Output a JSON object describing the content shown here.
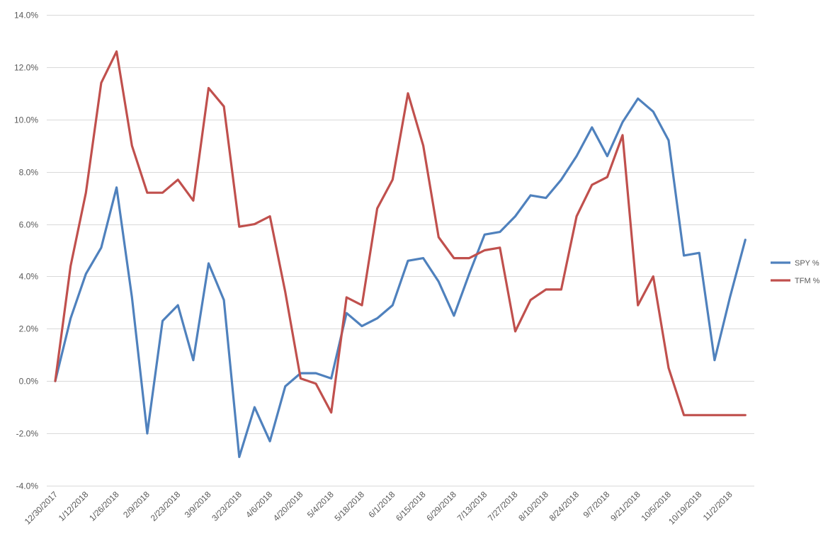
{
  "chart_data": {
    "type": "line",
    "title": "",
    "xlabel": "",
    "ylabel": "",
    "ylim": [
      -4,
      14
    ],
    "y_ticks": [
      -4,
      -2,
      0,
      2,
      4,
      6,
      8,
      10,
      12,
      14
    ],
    "y_tick_labels": [
      "-4.0%",
      "-2.0%",
      "0.0%",
      "2.0%",
      "4.0%",
      "6.0%",
      "8.0%",
      "10.0%",
      "12.0%",
      "14.0%"
    ],
    "grid": true,
    "legend_position": "right",
    "x_tick_labels": [
      "12/30/2017",
      "1/12/2018",
      "1/26/2018",
      "2/9/2018",
      "2/23/2018",
      "3/9/2018",
      "3/23/2018",
      "4/6/2018",
      "4/20/2018",
      "5/4/2018",
      "5/18/2018",
      "6/1/2018",
      "6/15/2018",
      "6/29/2018",
      "7/13/2018",
      "7/27/2018",
      "8/10/2018",
      "8/24/2018",
      "9/7/2018",
      "9/21/2018",
      "10/5/2018",
      "10/19/2018",
      "11/2/2018"
    ],
    "x_tick_every": 2,
    "series": [
      {
        "name": "SPY %",
        "color": "#4f81bd",
        "values": [
          0.0,
          2.4,
          4.1,
          5.1,
          7.4,
          3.2,
          -2.0,
          2.3,
          2.9,
          0.8,
          4.5,
          3.1,
          -2.9,
          -1.0,
          -2.3,
          -0.2,
          0.3,
          0.3,
          0.1,
          2.6,
          2.1,
          2.4,
          2.9,
          4.6,
          4.7,
          3.8,
          2.5,
          4.1,
          5.6,
          5.7,
          6.3,
          7.1,
          7.0,
          7.7,
          8.6,
          9.7,
          8.6,
          9.9,
          10.8,
          10.3,
          9.2,
          4.8,
          4.9,
          0.8,
          3.2,
          5.4
        ]
      },
      {
        "name": "TFM %",
        "color": "#c0504d",
        "values": [
          0.0,
          4.4,
          7.2,
          11.4,
          12.6,
          9.0,
          7.2,
          7.2,
          7.7,
          6.9,
          11.2,
          10.5,
          5.9,
          6.0,
          6.3,
          3.4,
          0.1,
          -0.1,
          -1.2,
          3.2,
          2.9,
          6.6,
          7.7,
          11.0,
          9.0,
          5.5,
          4.7,
          4.7,
          5.0,
          5.1,
          1.9,
          3.1,
          3.5,
          3.5,
          6.3,
          7.5,
          7.8,
          9.4,
          2.9,
          4.0,
          0.5,
          -1.3,
          -1.3,
          -1.3,
          -1.3,
          -1.3
        ]
      }
    ]
  }
}
